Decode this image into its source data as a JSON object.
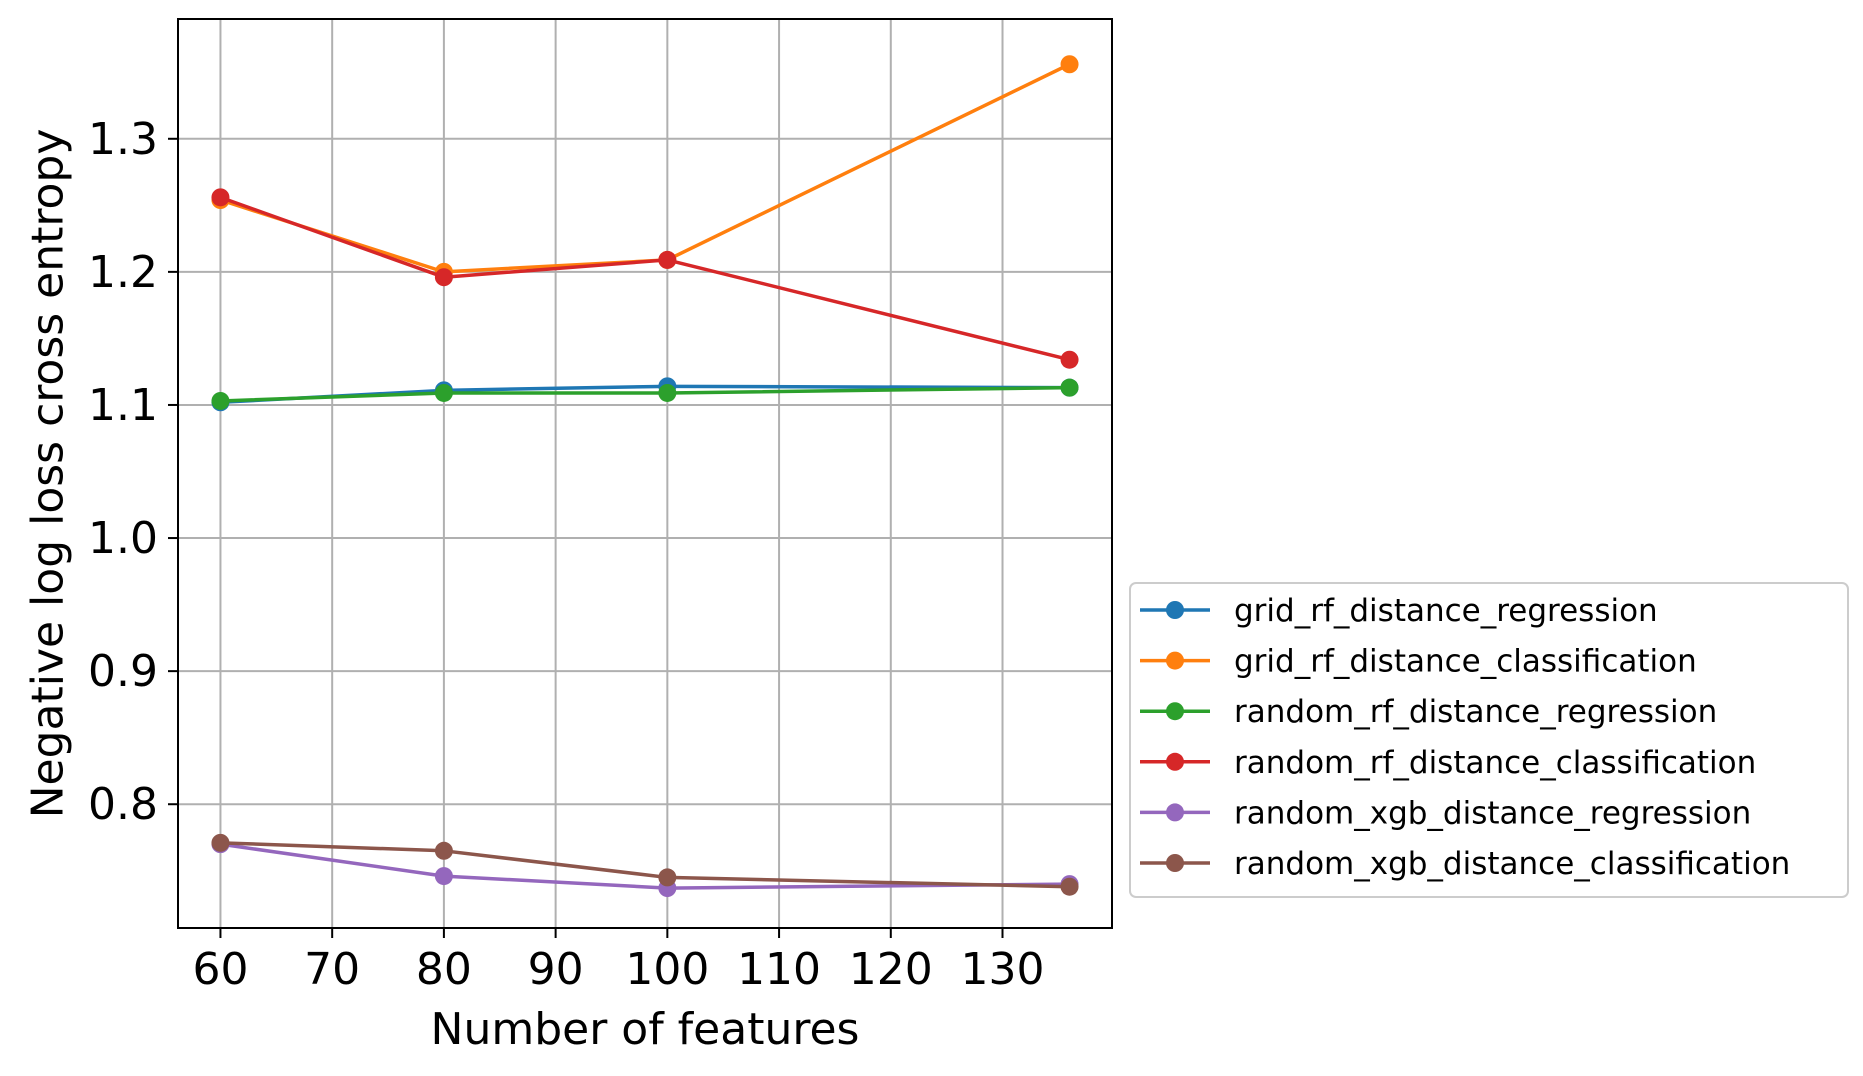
{
  "chart_data": {
    "type": "line",
    "title": "",
    "xlabel": "Number of features",
    "ylabel": "Negative log loss cross entropy",
    "xlim": [
      56.2,
      139.8
    ],
    "ylim": [
      0.707,
      1.39
    ],
    "x_ticks": [
      60,
      70,
      80,
      90,
      100,
      110,
      120,
      130
    ],
    "y_ticks": [
      0.8,
      0.9,
      1.0,
      1.1,
      1.2,
      1.3
    ],
    "x_tick_labels": [
      "60",
      "70",
      "80",
      "90",
      "100",
      "110",
      "120",
      "130"
    ],
    "y_tick_labels": [
      "0.8",
      "0.9",
      "1.0",
      "1.1",
      "1.2",
      "1.3"
    ],
    "grid": true,
    "legend_position": "outside-right-bottom",
    "x": [
      60,
      80,
      100,
      136
    ],
    "series": [
      {
        "name": "grid_rf_distance_regression",
        "color": "#1f77b4",
        "values": [
          1.102,
          1.111,
          1.114,
          1.113
        ]
      },
      {
        "name": "grid_rf_distance_classification",
        "color": "#ff7f0e",
        "values": [
          1.254,
          1.2,
          1.209,
          1.356
        ]
      },
      {
        "name": "random_rf_distance_regression",
        "color": "#2ca02c",
        "values": [
          1.103,
          1.109,
          1.109,
          1.113
        ]
      },
      {
        "name": "random_rf_distance_classification",
        "color": "#d62728",
        "values": [
          1.256,
          1.196,
          1.209,
          1.134
        ]
      },
      {
        "name": "random_xgb_distance_regression",
        "color": "#9467bd",
        "values": [
          0.77,
          0.746,
          0.737,
          0.74
        ]
      },
      {
        "name": "random_xgb_distance_classification",
        "color": "#8c564b",
        "values": [
          0.771,
          0.765,
          0.745,
          0.738
        ]
      }
    ]
  }
}
